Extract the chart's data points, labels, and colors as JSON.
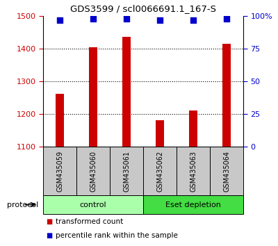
{
  "title": "GDS3599 / scl0066691.1_167-S",
  "samples": [
    "GSM435059",
    "GSM435060",
    "GSM435061",
    "GSM435062",
    "GSM435063",
    "GSM435064"
  ],
  "transformed_counts": [
    1262,
    1405,
    1437,
    1180,
    1210,
    1415
  ],
  "percentile_ranks": [
    97,
    98,
    98,
    97,
    97,
    98
  ],
  "ylim_left": [
    1100,
    1500
  ],
  "ylim_right": [
    0,
    100
  ],
  "yticks_left": [
    1100,
    1200,
    1300,
    1400,
    1500
  ],
  "yticks_right": [
    0,
    25,
    50,
    75,
    100
  ],
  "ytick_right_labels": [
    "0",
    "25",
    "50",
    "75",
    "100%"
  ],
  "groups": [
    {
      "label": "control",
      "samples": [
        0,
        1,
        2
      ],
      "color": "#aaffaa"
    },
    {
      "label": "Eset depletion",
      "samples": [
        3,
        4,
        5
      ],
      "color": "#44dd44"
    }
  ],
  "bar_color": "#CC0000",
  "dot_color": "#0000CC",
  "bar_width": 0.25,
  "dot_size": 30,
  "left_tick_color": "#CC0000",
  "right_tick_color": "#0000CC",
  "tick_label_area_color": "#C8C8C8",
  "legend_items": [
    {
      "label": "transformed count",
      "color": "#CC0000"
    },
    {
      "label": "percentile rank within the sample",
      "color": "#0000CC"
    }
  ],
  "protocol_label": "protocol",
  "figsize": [
    4.0,
    3.54
  ],
  "dpi": 100
}
